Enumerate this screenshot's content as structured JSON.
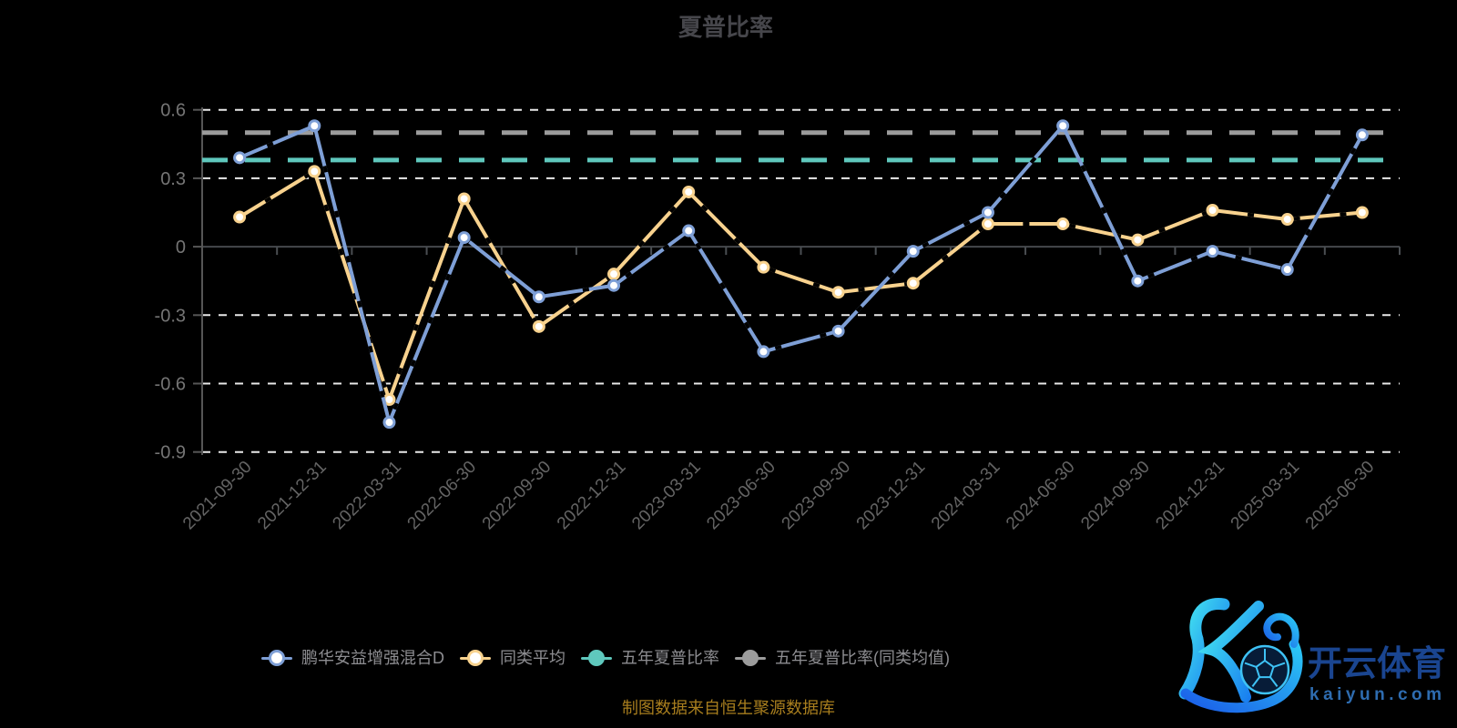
{
  "chart_data": {
    "type": "line",
    "title": "夏普比率",
    "categories": [
      "2021-09-30",
      "2021-12-31",
      "2022-03-31",
      "2022-06-30",
      "2022-09-30",
      "2022-12-31",
      "2023-03-31",
      "2023-06-30",
      "2023-09-30",
      "2023-12-31",
      "2024-03-31",
      "2024-06-30",
      "2024-09-30",
      "2024-12-31",
      "2025-03-31",
      "2025-06-30"
    ],
    "series": [
      {
        "name": "鹏华安益增强混合D",
        "kind": "line",
        "color": "#7e9fd6",
        "marker": "hollow",
        "values": [
          0.39,
          0.53,
          -0.77,
          0.04,
          -0.22,
          -0.17,
          0.07,
          -0.46,
          -0.37,
          -0.02,
          0.15,
          0.53,
          -0.15,
          -0.02,
          -0.1,
          0.49
        ]
      },
      {
        "name": "同类平均",
        "kind": "line",
        "color": "#f8d28e",
        "marker": "hollow",
        "values": [
          0.13,
          0.33,
          -0.67,
          0.21,
          -0.35,
          -0.12,
          0.24,
          -0.09,
          -0.2,
          -0.16,
          0.1,
          0.1,
          0.03,
          0.16,
          0.12,
          0.15
        ]
      },
      {
        "name": "五年夏普比率",
        "kind": "hline",
        "color": "#5fc8bd",
        "marker": "solid",
        "value": 0.38
      },
      {
        "name": "五年夏普比率(同类均值)",
        "kind": "hline",
        "color": "#9c9c9c",
        "marker": "solid",
        "value": 0.5
      }
    ],
    "yticks": [
      0.6,
      0.3,
      0,
      -0.3,
      -0.6,
      -0.9
    ],
    "ylim": [
      -0.9,
      0.6
    ],
    "xlabel": "",
    "ylabel": "",
    "grid": true,
    "legend_position": "bottom",
    "colors": {
      "grid_dashed": "#e9e9e9",
      "zero_line": "#45484c",
      "axis_line": "#565656",
      "x_tick": "#4a4e52",
      "y_label": "#757575",
      "x_label": "#646464"
    }
  },
  "footer": {
    "text": "制图数据来自恒生聚源数据库"
  },
  "watermark": {
    "brand": "开云体育",
    "domain": "kaiyun.com"
  }
}
